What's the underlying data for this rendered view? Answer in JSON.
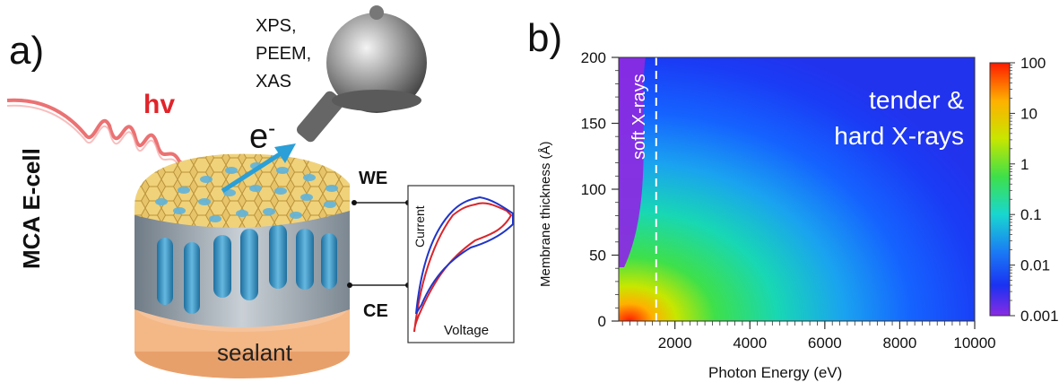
{
  "panel_a": {
    "label": "a)",
    "techniques": [
      "XPS,",
      "PEEM,",
      "XAS"
    ],
    "photon": "hv",
    "electron": "e",
    "electron_sup": "-",
    "we": "WE",
    "ce": "CE",
    "cell": "MCA E-cell",
    "sealant": "sealant",
    "cv": {
      "ylabel": "Current",
      "xlabel": "Voltage"
    }
  },
  "panel_b": {
    "label": "b)",
    "region_soft": "soft X-rays",
    "region_hard_1": "tender &",
    "region_hard_2": "hard X-rays"
  },
  "chart_data": {
    "type": "heatmap",
    "xlabel": "Photon Energy (eV)",
    "ylabel": "Membrane thickness (Å)",
    "xlim": [
      500,
      10000
    ],
    "ylim": [
      0,
      200
    ],
    "xticks": [
      "2000",
      "4000",
      "6000",
      "8000",
      "10000"
    ],
    "yticks": [
      "0",
      "50",
      "100",
      "150",
      "200"
    ],
    "colorbar": {
      "scale": "log",
      "range": [
        0.001,
        100
      ],
      "ticks": [
        "100",
        "10",
        "1",
        "0.1",
        "0.01",
        "0.001"
      ]
    },
    "divider_x": 1500,
    "colors": {
      "low": "#8a2be2",
      "high": "#ff1a00"
    }
  }
}
